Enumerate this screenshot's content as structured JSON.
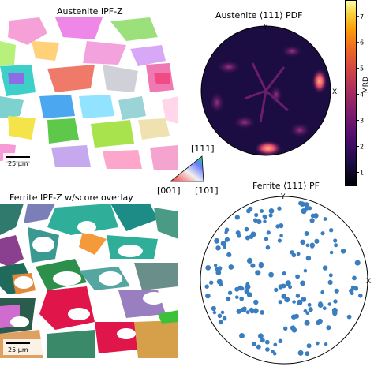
{
  "panels": {
    "austenite_ipf": {
      "title": "Austenite IPF-Z",
      "scalebar": "25 µm"
    },
    "austenite_pdf": {
      "title": "Austenite ⟨111⟩ PDF",
      "axis_y": "Y",
      "axis_x": "X",
      "colorbar": {
        "label": "MRD",
        "ticks": [
          "1",
          "2",
          "3",
          "4",
          "5",
          "6",
          "7"
        ],
        "min": 0.5,
        "max": 7.6
      }
    },
    "ipf_key": {
      "top": "[111]",
      "left": "[001]",
      "right": "[101]"
    },
    "ferrite_ipf": {
      "title": "Ferrite IPF-Z w/score overlay",
      "scalebar": "25 µm"
    },
    "ferrite_pf": {
      "title": "Ferrite ⟨111⟩ PF",
      "axis_y": "Y",
      "axis_x": "X"
    }
  },
  "colors": {
    "point": "#3a7ebf",
    "cmap_low": "#000004",
    "cmap_mid": "#8c2981",
    "cmap_high": "#fcfdbf"
  }
}
